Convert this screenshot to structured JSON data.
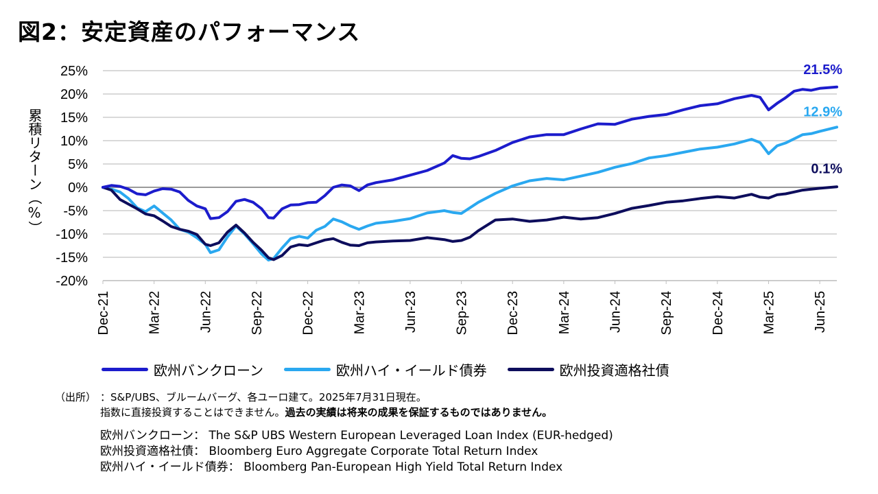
{
  "title": "図2：安定資産のパフォーマンス",
  "colors": {
    "loan": "#1c1ccc",
    "hy": "#2aa8f0",
    "ig": "#0d0d5c",
    "zero": "#9a9a9a",
    "grid": "#d9d9d9"
  },
  "chart_data": {
    "type": "line",
    "title": "図2：安定資産のパフォーマンス",
    "ylabel": "累積リターン（%）",
    "ylim": [
      -20,
      25
    ],
    "yticks": [
      25,
      20,
      15,
      10,
      5,
      0,
      -5,
      -10,
      -15,
      -20
    ],
    "ytick_labels": [
      "25%",
      "20%",
      "15%",
      "10%",
      "5%",
      "0%",
      "-5%",
      "-10%",
      "-15%",
      "-20%"
    ],
    "x_tick_labels": [
      "Dec-21",
      "Mar-22",
      "Jun-22",
      "Sep-22",
      "Dec-22",
      "Mar-23",
      "Jun-23",
      "Sep-23",
      "Dec-23",
      "Mar-24",
      "Jun-24",
      "Sep-24",
      "Dec-24",
      "Mar-25",
      "Jun-25"
    ],
    "x_tick_positions": [
      0,
      3,
      6,
      9,
      12,
      15,
      18,
      21,
      24,
      27,
      30,
      33,
      36,
      39,
      42
    ],
    "x_range": [
      0,
      43
    ],
    "x_unit": "months since Dec-21",
    "grid": "horizontal",
    "legend_position": "bottom",
    "series": [
      {
        "name": "欧州バンクローン",
        "color_key": "loan",
        "end_label": "21.5%",
        "points": [
          [
            0,
            0
          ],
          [
            0.5,
            0.4
          ],
          [
            1,
            0.2
          ],
          [
            1.5,
            -0.4
          ],
          [
            2,
            -1.4
          ],
          [
            2.5,
            -1.6
          ],
          [
            3,
            -0.8
          ],
          [
            3.5,
            -0.3
          ],
          [
            4,
            -0.4
          ],
          [
            4.5,
            -1.0
          ],
          [
            5,
            -2.8
          ],
          [
            5.5,
            -4.0
          ],
          [
            6,
            -4.6
          ],
          [
            6.3,
            -6.7
          ],
          [
            6.8,
            -6.5
          ],
          [
            7.3,
            -5.2
          ],
          [
            7.8,
            -3.0
          ],
          [
            8.3,
            -2.6
          ],
          [
            8.8,
            -3.2
          ],
          [
            9.3,
            -4.6
          ],
          [
            9.7,
            -6.5
          ],
          [
            10,
            -6.6
          ],
          [
            10.5,
            -4.6
          ],
          [
            11,
            -3.8
          ],
          [
            11.5,
            -3.7
          ],
          [
            12,
            -3.3
          ],
          [
            12.5,
            -3.2
          ],
          [
            13,
            -1.8
          ],
          [
            13.5,
            0
          ],
          [
            14,
            0.5
          ],
          [
            14.5,
            0.3
          ],
          [
            15,
            -0.7
          ],
          [
            15.5,
            0.5
          ],
          [
            16,
            1.0
          ],
          [
            17,
            1.6
          ],
          [
            18,
            2.6
          ],
          [
            19,
            3.6
          ],
          [
            20,
            5.2
          ],
          [
            20.5,
            6.8
          ],
          [
            21,
            6.2
          ],
          [
            21.5,
            6.1
          ],
          [
            22,
            6.6
          ],
          [
            23,
            7.9
          ],
          [
            24,
            9.6
          ],
          [
            25,
            10.8
          ],
          [
            26,
            11.3
          ],
          [
            27,
            11.3
          ],
          [
            28,
            12.5
          ],
          [
            29,
            13.6
          ],
          [
            30,
            13.5
          ],
          [
            31,
            14.6
          ],
          [
            32,
            15.2
          ],
          [
            33,
            15.6
          ],
          [
            34,
            16.6
          ],
          [
            35,
            17.5
          ],
          [
            36,
            17.9
          ],
          [
            37,
            19.0
          ],
          [
            38,
            19.7
          ],
          [
            38.5,
            19.3
          ],
          [
            39,
            16.6
          ],
          [
            39.5,
            18.0
          ],
          [
            40,
            19.2
          ],
          [
            40.5,
            20.6
          ],
          [
            41,
            21.0
          ],
          [
            41.5,
            20.8
          ],
          [
            42,
            21.2
          ],
          [
            43,
            21.5
          ]
        ]
      },
      {
        "name": "欧州ハイ・イールド債券",
        "color_key": "hy",
        "end_label": "12.9%",
        "points": [
          [
            0,
            0
          ],
          [
            0.5,
            -0.4
          ],
          [
            1,
            -1.0
          ],
          [
            1.5,
            -2.4
          ],
          [
            2,
            -4.4
          ],
          [
            2.5,
            -5.2
          ],
          [
            3,
            -4.0
          ],
          [
            3.5,
            -5.5
          ],
          [
            4,
            -7.0
          ],
          [
            4.5,
            -9.0
          ],
          [
            5,
            -9.6
          ],
          [
            5.5,
            -10.8
          ],
          [
            6,
            -12.2
          ],
          [
            6.3,
            -14.0
          ],
          [
            6.8,
            -13.4
          ],
          [
            7.3,
            -10.6
          ],
          [
            7.8,
            -8.3
          ],
          [
            8.3,
            -10.0
          ],
          [
            8.8,
            -12.1
          ],
          [
            9.3,
            -14.3
          ],
          [
            9.7,
            -15.6
          ],
          [
            10,
            -15.3
          ],
          [
            10.5,
            -13.0
          ],
          [
            11,
            -11.0
          ],
          [
            11.5,
            -10.5
          ],
          [
            12,
            -10.9
          ],
          [
            12.5,
            -9.2
          ],
          [
            13,
            -8.4
          ],
          [
            13.5,
            -6.8
          ],
          [
            14,
            -7.4
          ],
          [
            14.5,
            -8.3
          ],
          [
            15,
            -9.0
          ],
          [
            15.5,
            -8.3
          ],
          [
            16,
            -7.7
          ],
          [
            17,
            -7.3
          ],
          [
            18,
            -6.7
          ],
          [
            19,
            -5.5
          ],
          [
            20,
            -5.0
          ],
          [
            20.5,
            -5.4
          ],
          [
            21,
            -5.6
          ],
          [
            21.5,
            -4.4
          ],
          [
            22,
            -3.2
          ],
          [
            23,
            -1.3
          ],
          [
            24,
            0.3
          ],
          [
            25,
            1.4
          ],
          [
            26,
            1.9
          ],
          [
            27,
            1.6
          ],
          [
            28,
            2.4
          ],
          [
            29,
            3.2
          ],
          [
            30,
            4.3
          ],
          [
            31,
            5.1
          ],
          [
            32,
            6.3
          ],
          [
            33,
            6.8
          ],
          [
            34,
            7.5
          ],
          [
            35,
            8.2
          ],
          [
            36,
            8.6
          ],
          [
            37,
            9.3
          ],
          [
            38,
            10.3
          ],
          [
            38.5,
            9.6
          ],
          [
            39,
            7.2
          ],
          [
            39.5,
            8.9
          ],
          [
            40,
            9.5
          ],
          [
            40.5,
            10.4
          ],
          [
            41,
            11.3
          ],
          [
            41.5,
            11.5
          ],
          [
            42,
            12.0
          ],
          [
            43,
            12.9
          ]
        ]
      },
      {
        "name": "欧州投資適格社債",
        "color_key": "ig",
        "end_label": "0.1%",
        "points": [
          [
            0,
            0
          ],
          [
            0.5,
            -0.6
          ],
          [
            1,
            -2.6
          ],
          [
            1.5,
            -3.6
          ],
          [
            2,
            -4.6
          ],
          [
            2.5,
            -5.7
          ],
          [
            3,
            -6.1
          ],
          [
            3.5,
            -7.2
          ],
          [
            4,
            -8.4
          ],
          [
            4.5,
            -9.0
          ],
          [
            5,
            -9.4
          ],
          [
            5.5,
            -10.1
          ],
          [
            6,
            -12.2
          ],
          [
            6.3,
            -12.5
          ],
          [
            6.8,
            -11.9
          ],
          [
            7.3,
            -9.6
          ],
          [
            7.8,
            -8.1
          ],
          [
            8.3,
            -9.8
          ],
          [
            8.8,
            -11.8
          ],
          [
            9.3,
            -13.5
          ],
          [
            9.7,
            -15.1
          ],
          [
            10,
            -15.5
          ],
          [
            10.5,
            -14.6
          ],
          [
            11,
            -12.8
          ],
          [
            11.5,
            -12.3
          ],
          [
            12,
            -12.5
          ],
          [
            12.5,
            -11.9
          ],
          [
            13,
            -11.3
          ],
          [
            13.5,
            -11.0
          ],
          [
            14,
            -11.8
          ],
          [
            14.5,
            -12.4
          ],
          [
            15,
            -12.5
          ],
          [
            15.5,
            -11.9
          ],
          [
            16,
            -11.7
          ],
          [
            17,
            -11.5
          ],
          [
            18,
            -11.4
          ],
          [
            19,
            -10.8
          ],
          [
            20,
            -11.2
          ],
          [
            20.5,
            -11.6
          ],
          [
            21,
            -11.4
          ],
          [
            21.5,
            -10.7
          ],
          [
            22,
            -9.3
          ],
          [
            23,
            -7.0
          ],
          [
            24,
            -6.8
          ],
          [
            25,
            -7.3
          ],
          [
            26,
            -7.0
          ],
          [
            27,
            -6.4
          ],
          [
            28,
            -6.8
          ],
          [
            29,
            -6.5
          ],
          [
            30,
            -5.6
          ],
          [
            31,
            -4.5
          ],
          [
            32,
            -3.9
          ],
          [
            33,
            -3.2
          ],
          [
            34,
            -2.9
          ],
          [
            35,
            -2.4
          ],
          [
            36,
            -2.0
          ],
          [
            37,
            -2.3
          ],
          [
            38,
            -1.5
          ],
          [
            38.5,
            -2.1
          ],
          [
            39,
            -2.3
          ],
          [
            39.5,
            -1.6
          ],
          [
            40,
            -1.4
          ],
          [
            40.5,
            -1.0
          ],
          [
            41,
            -0.6
          ],
          [
            41.5,
            -0.4
          ],
          [
            42,
            -0.2
          ],
          [
            43,
            0.1
          ]
        ]
      }
    ]
  },
  "notes": {
    "source_label": "（出所）",
    "source_text": "：S&P/UBS、ブルームバーグ、各ユーロ建て。2025年7月31日現在。",
    "line2_normal": "指数に直接投資することはできません。",
    "line2_bold": "過去の実績は将来の成果を保証するものではありません。"
  },
  "definitions": [
    "欧州バンクローン：  The S&P UBS Western European Leveraged Loan Index (EUR-hedged)",
    "欧州投資適格社債：  Bloomberg Euro Aggregate Corporate Total Return Index",
    "欧州ハイ・イールド債券：  Bloomberg Pan-European High Yield Total Return Index"
  ]
}
